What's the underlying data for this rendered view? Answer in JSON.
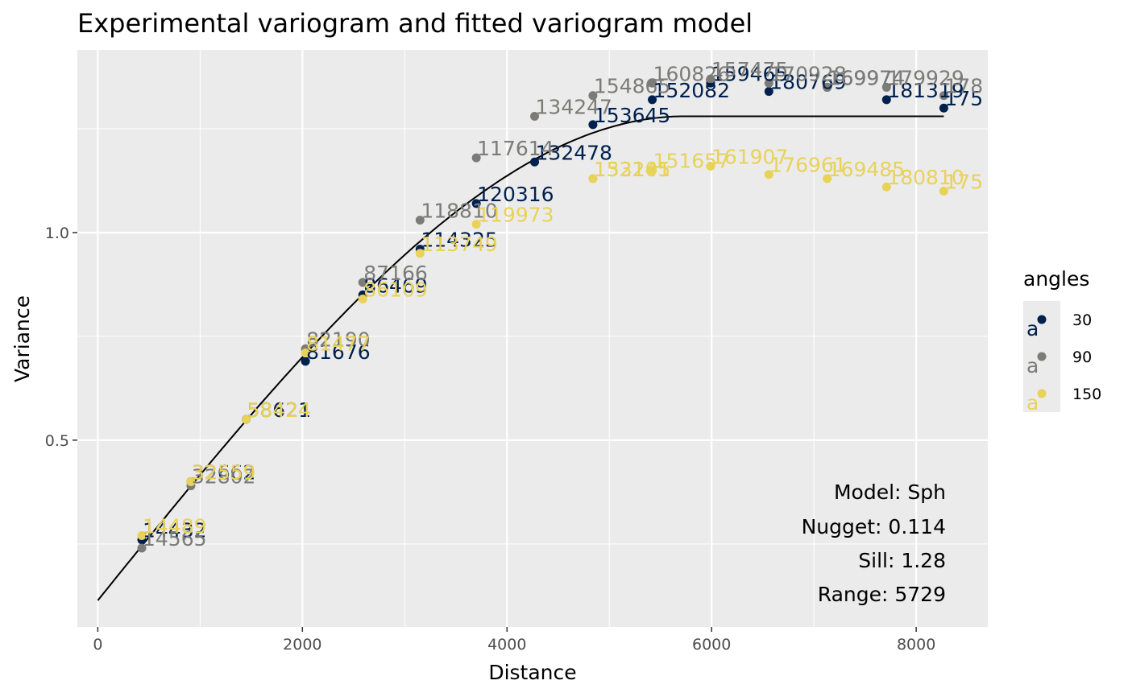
{
  "chart_data": {
    "type": "scatter",
    "title": "Experimental variogram and fitted variogram model",
    "xlabel": "Distance",
    "ylabel": "Variance",
    "xlim": [
      -200,
      8700
    ],
    "ylim": [
      0.05,
      1.44
    ],
    "x_ticks": [
      0,
      2000,
      4000,
      6000,
      8000
    ],
    "x_tick_labels": [
      "0",
      "2000",
      "4000",
      "6000",
      "8000"
    ],
    "y_ticks": [
      0.5,
      1.0
    ],
    "y_tick_labels": [
      "0.5",
      "1.0"
    ],
    "grid": true,
    "background": "#ebebeb",
    "legend": {
      "title": "angles",
      "position": "right",
      "key_glyph": "a",
      "entries": [
        {
          "label": "30",
          "color": "#00204d"
        },
        {
          "label": "90",
          "color": "#7c7b78"
        },
        {
          "label": "150",
          "color": "#e9d258"
        }
      ]
    },
    "series": [
      {
        "name": "30",
        "color": "#00204d",
        "points": [
          {
            "x": 430,
            "y": 0.26,
            "label": "14432"
          },
          {
            "x": 910,
            "y": 0.4,
            "label": "32662"
          },
          {
            "x": 1450,
            "y": 0.55,
            "label": "58621"
          },
          {
            "x": 2030,
            "y": 0.69,
            "label": "81676"
          },
          {
            "x": 2590,
            "y": 0.85,
            "label": "86469"
          },
          {
            "x": 3150,
            "y": 0.96,
            "label": "114325"
          },
          {
            "x": 3700,
            "y": 1.07,
            "label": "120316"
          },
          {
            "x": 4270,
            "y": 1.17,
            "label": "132478"
          },
          {
            "x": 4840,
            "y": 1.26,
            "label": "153645"
          },
          {
            "x": 5420,
            "y": 1.32,
            "label": "152082"
          },
          {
            "x": 5990,
            "y": 1.36,
            "label": "159465"
          },
          {
            "x": 6560,
            "y": 1.34,
            "label": "180769"
          },
          {
            "x": 7130,
            "y": 1.35,
            "label": "169974"
          },
          {
            "x": 7710,
            "y": 1.32,
            "label": "181319"
          },
          {
            "x": 8270,
            "y": 1.3,
            "label": "175"
          }
        ]
      },
      {
        "name": "90",
        "color": "#7c7b78",
        "points": [
          {
            "x": 430,
            "y": 0.24,
            "label": "14565"
          },
          {
            "x": 910,
            "y": 0.39,
            "label": "32802"
          },
          {
            "x": 1450,
            "y": 0.55,
            "label": "58424"
          },
          {
            "x": 2030,
            "y": 0.72,
            "label": "82190"
          },
          {
            "x": 2590,
            "y": 0.88,
            "label": "87166"
          },
          {
            "x": 3150,
            "y": 1.03,
            "label": "118810"
          },
          {
            "x": 3700,
            "y": 1.18,
            "label": "117614"
          },
          {
            "x": 4270,
            "y": 1.28,
            "label": "134247"
          },
          {
            "x": 4840,
            "y": 1.33,
            "label": "154865"
          },
          {
            "x": 5420,
            "y": 1.36,
            "label": "160826"
          },
          {
            "x": 5990,
            "y": 1.37,
            "label": "157475"
          },
          {
            "x": 6560,
            "y": 1.36,
            "label": "170928"
          },
          {
            "x": 7130,
            "y": 1.35,
            "label": "169974"
          },
          {
            "x": 7710,
            "y": 1.35,
            "label": "179929"
          },
          {
            "x": 8270,
            "y": 1.33,
            "label": "178"
          }
        ]
      },
      {
        "name": "150",
        "color": "#e9d258",
        "points": [
          {
            "x": 430,
            "y": 0.27,
            "label": "14489"
          },
          {
            "x": 910,
            "y": 0.4,
            "label": "32559"
          },
          {
            "x": 1450,
            "y": 0.55,
            "label": "58424"
          },
          {
            "x": 2030,
            "y": 0.71,
            "label": "81477"
          },
          {
            "x": 2590,
            "y": 0.84,
            "label": "86109"
          },
          {
            "x": 3150,
            "y": 0.95,
            "label": "113749"
          },
          {
            "x": 3700,
            "y": 1.02,
            "label": "119973"
          },
          {
            "x": 4840,
            "y": 1.13,
            "label": "132105"
          },
          {
            "x": 4840,
            "y": 1.13,
            "label": "153241"
          },
          {
            "x": 5420,
            "y": 1.15,
            "label": "151657"
          },
          {
            "x": 5990,
            "y": 1.16,
            "label": "161907"
          },
          {
            "x": 6560,
            "y": 1.14,
            "label": "176961"
          },
          {
            "x": 7130,
            "y": 1.13,
            "label": "169485"
          },
          {
            "x": 7710,
            "y": 1.11,
            "label": "180810"
          },
          {
            "x": 8270,
            "y": 1.1,
            "label": "175"
          }
        ]
      }
    ],
    "model_curve": {
      "type": "spherical",
      "nugget": 0.114,
      "sill": 1.28,
      "range": 5729,
      "x_max": 8270,
      "color": "#000000"
    },
    "annotation": {
      "lines": [
        "Model: Sph",
        "Nugget: 0.114",
        "Sill: 1.28",
        "Range: 5729"
      ],
      "position": "bottom-right"
    }
  }
}
